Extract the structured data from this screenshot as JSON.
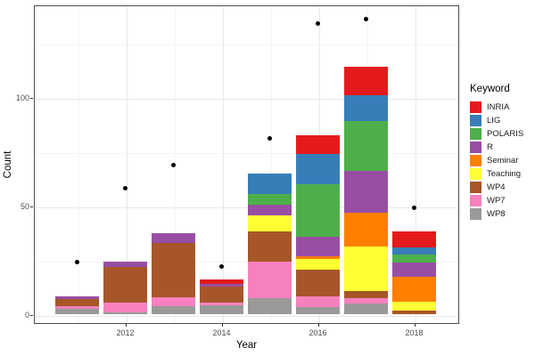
{
  "chart_data": {
    "type": "bar",
    "stacked": true,
    "xlabel": "Year",
    "ylabel": "Count",
    "legend_title": "Keyword",
    "legend_position": "right",
    "x": [
      2011,
      2012,
      2013,
      2014,
      2015,
      2016,
      2017,
      2018
    ],
    "x_tick_labels": [
      "2012",
      "2014",
      "2016",
      "2018"
    ],
    "x_major_ticks": [
      2012,
      2014,
      2016,
      2018
    ],
    "x_minor_gridlines": [
      2011,
      2013,
      2015,
      2017
    ],
    "y_tick_labels": [
      "0",
      "50",
      "100"
    ],
    "y_major_ticks": [
      0,
      50,
      100
    ],
    "y_minor_gridlines": [
      25,
      75,
      125
    ],
    "ylim": [
      -4,
      142
    ],
    "grid": "on",
    "series": [
      {
        "name": "WP8",
        "color": "#999999",
        "values": [
          2.5,
          1,
          4,
          4.5,
          7.5,
          3.5,
          5,
          0
        ]
      },
      {
        "name": "WP7",
        "color": "#f781bf",
        "values": [
          1.5,
          4.5,
          4,
          1,
          17,
          5,
          2.5,
          0
        ]
      },
      {
        "name": "WP4",
        "color": "#a65628",
        "values": [
          3,
          16.5,
          25,
          7.5,
          14,
          12,
          3.5,
          2
        ]
      },
      {
        "name": "Teaching",
        "color": "#ffff33",
        "values": [
          0,
          0,
          0,
          0,
          7,
          5,
          20.5,
          4
        ]
      },
      {
        "name": "Seminar",
        "color": "#ff7f00",
        "values": [
          0,
          0,
          0,
          0,
          0,
          1.5,
          15.5,
          11.5
        ]
      },
      {
        "name": "R",
        "color": "#984ea3",
        "values": [
          1.5,
          2.5,
          4.5,
          1,
          5,
          9,
          19,
          6.5
        ]
      },
      {
        "name": "POLARIS",
        "color": "#4daf4a",
        "values": [
          0,
          0,
          0,
          0,
          5,
          24,
          23,
          3.5
        ]
      },
      {
        "name": "LIG",
        "color": "#377eb8",
        "values": [
          0,
          0,
          0,
          0,
          9.5,
          14,
          12,
          3.5
        ]
      },
      {
        "name": "INRIA",
        "color": "#e41a1c",
        "values": [
          0,
          0,
          0,
          2,
          0,
          8.5,
          13,
          7.5
        ]
      }
    ],
    "legend_order": [
      "INRIA",
      "LIG",
      "POLARIS",
      "R",
      "Seminar",
      "Teaching",
      "WP4",
      "WP7",
      "WP8"
    ],
    "points": {
      "marker": "black-dot",
      "values": [
        24,
        58,
        69,
        22,
        81,
        134,
        136,
        49
      ]
    }
  }
}
